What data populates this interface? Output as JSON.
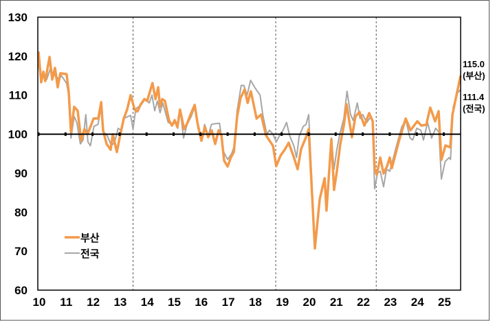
{
  "chart_data": {
    "type": "line",
    "title": "",
    "xlabel": "",
    "ylabel": "",
    "ylim": [
      60,
      130
    ],
    "yticks": [
      "60",
      "70",
      "80",
      "90",
      "100",
      "110",
      "120",
      "130"
    ],
    "xlim": [
      2010,
      2025.62
    ],
    "xticks": [
      {
        "year": 2010,
        "label": "10"
      },
      {
        "year": 2011,
        "label": "11"
      },
      {
        "year": 2012,
        "label": "12"
      },
      {
        "year": 2013,
        "label": "13"
      },
      {
        "year": 2014,
        "label": "14"
      },
      {
        "year": 2015,
        "label": "15"
      },
      {
        "year": 2016,
        "label": "16"
      },
      {
        "year": 2017,
        "label": "17"
      },
      {
        "year": 2018,
        "label": "18"
      },
      {
        "year": 2019,
        "label": "19"
      },
      {
        "year": 2020,
        "label": "20"
      },
      {
        "year": 2021,
        "label": "21"
      },
      {
        "year": 2022,
        "label": "22"
      },
      {
        "year": 2023,
        "label": "23"
      },
      {
        "year": 2024,
        "label": "24"
      },
      {
        "year": 2025,
        "label": "25"
      }
    ],
    "reference_line": 100,
    "dashed_vlines": [
      2013.5,
      2018.78,
      2022.5
    ],
    "grid": false,
    "legend_position": "bottom-left",
    "series": [
      {
        "name": "부산",
        "color": "#F39A4A",
        "points": [
          [
            2010.0,
            121.2
          ],
          [
            2010.1,
            113.3
          ],
          [
            2010.18,
            116
          ],
          [
            2010.25,
            113.6
          ],
          [
            2010.41,
            119.8
          ],
          [
            2010.51,
            114
          ],
          [
            2010.61,
            117
          ],
          [
            2010.71,
            112
          ],
          [
            2010.81,
            115.6
          ],
          [
            2011.04,
            115.4
          ],
          [
            2011.12,
            110.7
          ],
          [
            2011.2,
            100.5
          ],
          [
            2011.32,
            107
          ],
          [
            2011.45,
            106
          ],
          [
            2011.58,
            98.3
          ],
          [
            2011.7,
            101.3
          ],
          [
            2011.81,
            100
          ],
          [
            2011.93,
            102
          ],
          [
            2012.04,
            104
          ],
          [
            2012.21,
            104
          ],
          [
            2012.32,
            108.2
          ],
          [
            2012.39,
            101
          ],
          [
            2012.52,
            97.5
          ],
          [
            2012.67,
            96
          ],
          [
            2012.75,
            100
          ],
          [
            2012.9,
            95.4
          ],
          [
            2013.03,
            100
          ],
          [
            2013.16,
            104.1
          ],
          [
            2013.28,
            106.3
          ],
          [
            2013.41,
            110
          ],
          [
            2013.56,
            106.3
          ],
          [
            2013.66,
            105.8
          ],
          [
            2013.79,
            107.7
          ],
          [
            2013.92,
            109
          ],
          [
            2014.02,
            108.5
          ],
          [
            2014.22,
            113.1
          ],
          [
            2014.33,
            109
          ],
          [
            2014.43,
            112
          ],
          [
            2014.5,
            107
          ],
          [
            2014.58,
            109
          ],
          [
            2014.68,
            108.5
          ],
          [
            2014.83,
            103.6
          ],
          [
            2014.94,
            102.2
          ],
          [
            2015.04,
            103.6
          ],
          [
            2015.14,
            101.8
          ],
          [
            2015.24,
            106.3
          ],
          [
            2015.39,
            101.3
          ],
          [
            2015.5,
            102.7
          ],
          [
            2015.65,
            105.4
          ],
          [
            2015.78,
            107.5
          ],
          [
            2015.88,
            103
          ],
          [
            2016.03,
            98.3
          ],
          [
            2016.16,
            101.8
          ],
          [
            2016.28,
            99.2
          ],
          [
            2016.41,
            101
          ],
          [
            2016.54,
            97.5
          ],
          [
            2016.67,
            101
          ],
          [
            2016.77,
            99.6
          ],
          [
            2016.87,
            93.2
          ],
          [
            2017.0,
            91.7
          ],
          [
            2017.12,
            94
          ],
          [
            2017.23,
            95.4
          ],
          [
            2017.35,
            104.5
          ],
          [
            2017.48,
            109.3
          ],
          [
            2017.63,
            111.5
          ],
          [
            2017.74,
            108
          ],
          [
            2017.86,
            111
          ],
          [
            2018.07,
            104
          ],
          [
            2018.24,
            105
          ],
          [
            2018.42,
            99.7
          ],
          [
            2018.68,
            97
          ],
          [
            2018.8,
            91.8
          ],
          [
            2018.96,
            94.5
          ],
          [
            2019.13,
            96.2
          ],
          [
            2019.26,
            97.8
          ],
          [
            2019.44,
            94.3
          ],
          [
            2019.59,
            91
          ],
          [
            2019.72,
            96.2
          ],
          [
            2019.9,
            99.2
          ],
          [
            2020.0,
            101.3
          ],
          [
            2020.23,
            70.7
          ],
          [
            2020.41,
            83.4
          ],
          [
            2020.59,
            88.7
          ],
          [
            2020.66,
            80.4
          ],
          [
            2020.84,
            98.7
          ],
          [
            2020.94,
            85.7
          ],
          [
            2021.04,
            90.4
          ],
          [
            2021.17,
            97.5
          ],
          [
            2021.3,
            102.2
          ],
          [
            2021.4,
            107.7
          ],
          [
            2021.6,
            99.2
          ],
          [
            2021.73,
            104.5
          ],
          [
            2021.88,
            105.7
          ],
          [
            2022.06,
            102.2
          ],
          [
            2022.24,
            105.4
          ],
          [
            2022.37,
            103.3
          ],
          [
            2022.44,
            91
          ],
          [
            2022.52,
            89.6
          ],
          [
            2022.65,
            94
          ],
          [
            2022.77,
            89.9
          ],
          [
            2022.9,
            91.8
          ],
          [
            2023.0,
            94
          ],
          [
            2023.08,
            91.3
          ],
          [
            2023.33,
            98
          ],
          [
            2023.59,
            104
          ],
          [
            2023.77,
            101
          ],
          [
            2024.02,
            103.3
          ],
          [
            2024.17,
            102.2
          ],
          [
            2024.35,
            102.4
          ],
          [
            2024.5,
            106.8
          ],
          [
            2024.68,
            103.3
          ],
          [
            2024.81,
            105.9
          ],
          [
            2024.91,
            93.4
          ],
          [
            2025.06,
            97.1
          ],
          [
            2025.24,
            96.6
          ],
          [
            2025.32,
            105
          ],
          [
            2025.62,
            115
          ]
        ]
      },
      {
        "name": "전국",
        "color": "#A6A6A6",
        "points": [
          [
            2010.0,
            118
          ],
          [
            2010.1,
            114
          ],
          [
            2010.2,
            115
          ],
          [
            2010.3,
            114
          ],
          [
            2010.45,
            117
          ],
          [
            2010.55,
            115
          ],
          [
            2010.65,
            115
          ],
          [
            2010.75,
            114
          ],
          [
            2010.85,
            115
          ],
          [
            2011.04,
            113
          ],
          [
            2011.12,
            110
          ],
          [
            2011.2,
            99
          ],
          [
            2011.32,
            104.5
          ],
          [
            2011.42,
            103
          ],
          [
            2011.55,
            97.5
          ],
          [
            2011.65,
            98.5
          ],
          [
            2011.75,
            105
          ],
          [
            2011.83,
            98
          ],
          [
            2011.92,
            97
          ],
          [
            2012.05,
            102
          ],
          [
            2012.2,
            102.5
          ],
          [
            2012.32,
            107
          ],
          [
            2012.42,
            100.5
          ],
          [
            2012.55,
            99.5
          ],
          [
            2012.7,
            97
          ],
          [
            2012.82,
            98
          ],
          [
            2012.95,
            101.5
          ],
          [
            2013.05,
            101
          ],
          [
            2013.15,
            104
          ],
          [
            2013.3,
            104.5
          ],
          [
            2013.41,
            104.8
          ],
          [
            2013.5,
            101.3
          ],
          [
            2013.6,
            106.5
          ],
          [
            2013.8,
            107.5
          ],
          [
            2013.95,
            109
          ],
          [
            2014.1,
            108
          ],
          [
            2014.2,
            110
          ],
          [
            2014.3,
            106
          ],
          [
            2014.4,
            108.5
          ],
          [
            2014.5,
            105.5
          ],
          [
            2014.6,
            108
          ],
          [
            2014.8,
            103
          ],
          [
            2014.95,
            102.5
          ],
          [
            2015.05,
            103
          ],
          [
            2015.15,
            101.5
          ],
          [
            2015.25,
            106
          ],
          [
            2015.37,
            99
          ],
          [
            2015.5,
            102.5
          ],
          [
            2015.65,
            104.5
          ],
          [
            2015.78,
            107
          ],
          [
            2015.9,
            101.5
          ],
          [
            2016.05,
            99
          ],
          [
            2016.15,
            102.5
          ],
          [
            2016.28,
            99.5
          ],
          [
            2016.4,
            102.5
          ],
          [
            2016.55,
            102.7
          ],
          [
            2016.7,
            102.8
          ],
          [
            2016.85,
            95.5
          ],
          [
            2017.0,
            93.5
          ],
          [
            2017.15,
            95
          ],
          [
            2017.25,
            97
          ],
          [
            2017.35,
            106
          ],
          [
            2017.5,
            112.5
          ],
          [
            2017.6,
            112.5
          ],
          [
            2017.72,
            110
          ],
          [
            2017.85,
            113.8
          ],
          [
            2018.0,
            112
          ],
          [
            2018.1,
            111
          ],
          [
            2018.2,
            110
          ],
          [
            2018.3,
            105
          ],
          [
            2018.45,
            100
          ],
          [
            2018.55,
            101
          ],
          [
            2018.68,
            100
          ],
          [
            2018.8,
            98
          ],
          [
            2018.95,
            100
          ],
          [
            2019.05,
            101
          ],
          [
            2019.18,
            103
          ],
          [
            2019.3,
            99.5
          ],
          [
            2019.45,
            97
          ],
          [
            2019.55,
            94
          ],
          [
            2019.65,
            99.5
          ],
          [
            2019.8,
            102
          ],
          [
            2019.9,
            102.5
          ],
          [
            2020.0,
            105
          ],
          [
            2020.23,
            71.5
          ],
          [
            2020.41,
            83
          ],
          [
            2020.59,
            88.5
          ],
          [
            2020.66,
            80.5
          ],
          [
            2020.84,
            99
          ],
          [
            2020.94,
            91
          ],
          [
            2021.04,
            96
          ],
          [
            2021.15,
            100
          ],
          [
            2021.3,
            104
          ],
          [
            2021.42,
            111
          ],
          [
            2021.55,
            105
          ],
          [
            2021.65,
            103.5
          ],
          [
            2021.8,
            108
          ],
          [
            2021.9,
            104
          ],
          [
            2022.0,
            105
          ],
          [
            2022.15,
            103
          ],
          [
            2022.3,
            104.5
          ],
          [
            2022.37,
            103
          ],
          [
            2022.44,
            86
          ],
          [
            2022.55,
            90
          ],
          [
            2022.65,
            90.5
          ],
          [
            2022.77,
            86.5
          ],
          [
            2022.88,
            91
          ],
          [
            2023.0,
            90.5
          ],
          [
            2023.1,
            93
          ],
          [
            2023.25,
            97
          ],
          [
            2023.45,
            102
          ],
          [
            2023.6,
            103.5
          ],
          [
            2023.75,
            99
          ],
          [
            2023.85,
            98.5
          ],
          [
            2024.0,
            101.5
          ],
          [
            2024.15,
            101
          ],
          [
            2024.25,
            98.5
          ],
          [
            2024.4,
            103
          ],
          [
            2024.55,
            99
          ],
          [
            2024.7,
            101.5
          ],
          [
            2024.82,
            100.5
          ],
          [
            2024.91,
            88.5
          ],
          [
            2025.05,
            93
          ],
          [
            2025.2,
            94
          ],
          [
            2025.25,
            93.5
          ],
          [
            2025.35,
            107
          ],
          [
            2025.5,
            110.5
          ],
          [
            2025.62,
            111.4
          ]
        ]
      }
    ],
    "annotations": [
      {
        "value": "115.0",
        "label": "(부산)"
      },
      {
        "value": "111.4",
        "label": "(전국)"
      }
    ]
  }
}
